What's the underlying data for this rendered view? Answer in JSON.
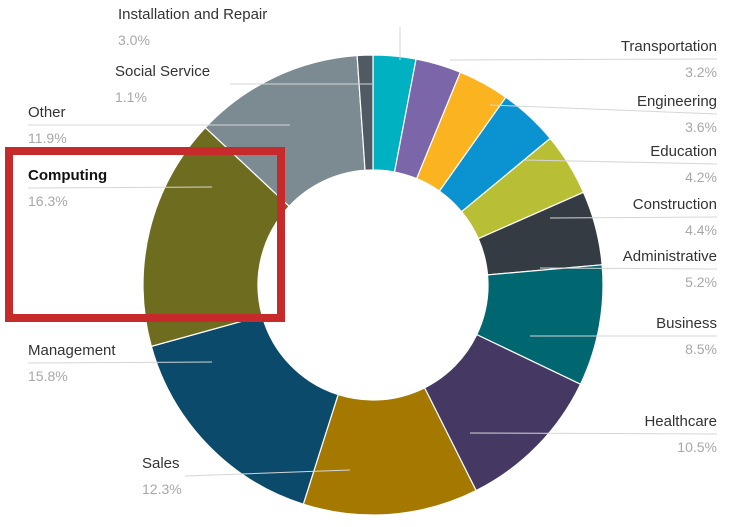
{
  "chart_data": {
    "type": "pie",
    "variant": "donut",
    "title": "",
    "highlighted": "Computing",
    "slices": [
      {
        "label": "Installation and Repair",
        "pct_label": "3.0%",
        "value": 3.0,
        "color": "#00b2c1"
      },
      {
        "label": "Transportation",
        "pct_label": "3.2%",
        "value": 3.2,
        "color": "#7b66aa"
      },
      {
        "label": "Engineering",
        "pct_label": "3.6%",
        "value": 3.6,
        "color": "#fbb320"
      },
      {
        "label": "Education",
        "pct_label": "4.2%",
        "value": 4.2,
        "color": "#0b93d1"
      },
      {
        "label": "Construction",
        "pct_label": "4.4%",
        "value": 4.4,
        "color": "#b9bf35"
      },
      {
        "label": "Administrative",
        "pct_label": "5.2%",
        "value": 5.2,
        "color": "#343b42"
      },
      {
        "label": "Business",
        "pct_label": "8.5%",
        "value": 8.5,
        "color": "#006771"
      },
      {
        "label": "Healthcare",
        "pct_label": "10.5%",
        "value": 10.5,
        "color": "#453963"
      },
      {
        "label": "Sales",
        "pct_label": "12.3%",
        "value": 12.3,
        "color": "#a57800"
      },
      {
        "label": "Management",
        "pct_label": "15.8%",
        "value": 15.8,
        "color": "#0b4a6b"
      },
      {
        "label": "Computing",
        "pct_label": "16.3%",
        "value": 16.3,
        "color": "#6e6d1f"
      },
      {
        "label": "Other",
        "pct_label": "11.9%",
        "value": 11.9,
        "color": "#7c8a92"
      },
      {
        "label": "Social Service",
        "pct_label": "1.1%",
        "value": 1.1,
        "color": "#4f5a63"
      }
    ]
  },
  "colors": {
    "highlight_border": "#c62a2a",
    "name_text": "#333333",
    "pct_text": "#a8a8a8",
    "leader_line": "#d6d6d6"
  }
}
